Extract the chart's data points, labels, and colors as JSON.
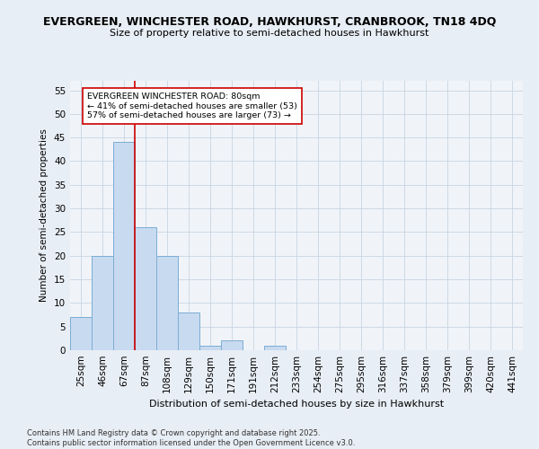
{
  "title_line1": "EVERGREEN, WINCHESTER ROAD, HAWKHURST, CRANBROOK, TN18 4DQ",
  "title_line2": "Size of property relative to semi-detached houses in Hawkhurst",
  "xlabel": "Distribution of semi-detached houses by size in Hawkhurst",
  "ylabel": "Number of semi-detached properties",
  "bar_color": "#c8daf0",
  "bar_edgecolor": "#7badd4",
  "categories": [
    "25sqm",
    "46sqm",
    "67sqm",
    "87sqm",
    "108sqm",
    "129sqm",
    "150sqm",
    "171sqm",
    "191sqm",
    "212sqm",
    "233sqm",
    "254sqm",
    "275sqm",
    "295sqm",
    "316sqm",
    "337sqm",
    "358sqm",
    "379sqm",
    "399sqm",
    "420sqm",
    "441sqm"
  ],
  "values": [
    7,
    20,
    44,
    26,
    20,
    8,
    1,
    2,
    0,
    1,
    0,
    0,
    0,
    0,
    0,
    0,
    0,
    0,
    0,
    0,
    0
  ],
  "ylim": [
    0,
    57
  ],
  "yticks": [
    0,
    5,
    10,
    15,
    20,
    25,
    30,
    35,
    40,
    45,
    50,
    55
  ],
  "vline_x": 2.5,
  "vline_color": "#cc0000",
  "annotation_text": "EVERGREEN WINCHESTER ROAD: 80sqm\n← 41% of semi-detached houses are smaller (53)\n57% of semi-detached houses are larger (73) →",
  "annotation_box_edgecolor": "#cc0000",
  "footer_line1": "Contains HM Land Registry data © Crown copyright and database right 2025.",
  "footer_line2": "Contains public sector information licensed under the Open Government Licence v3.0.",
  "background_color": "#e8eef5",
  "plot_background_color": "#f0f4f9",
  "grid_color": "#c8d4e0"
}
